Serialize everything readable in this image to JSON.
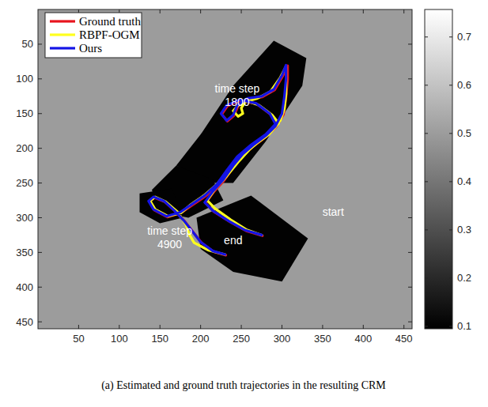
{
  "chart_data": {
    "type": "line",
    "caption": "(a) Estimated and ground truth trajectories in the resulting CRM",
    "xlim": [
      0,
      460
    ],
    "ylim": [
      460,
      0
    ],
    "xticks": [
      50,
      100,
      150,
      200,
      250,
      300,
      350,
      400,
      450
    ],
    "yticks": [
      50,
      100,
      150,
      200,
      250,
      300,
      350,
      400,
      450
    ],
    "legend": "upper left",
    "background_value": 0.5,
    "map_regions": [
      {
        "value": 0.1,
        "points": [
          [
            290,
            45
          ],
          [
            330,
            70
          ],
          [
            325,
            110
          ],
          [
            280,
            190
          ],
          [
            240,
            250
          ],
          [
            210,
            250
          ],
          [
            170,
            225
          ],
          [
            200,
            180
          ],
          [
            240,
            110
          ]
        ]
      },
      {
        "value": 0.1,
        "points": [
          [
            170,
            225
          ],
          [
            215,
            245
          ],
          [
            228,
            275
          ],
          [
            185,
            300
          ],
          [
            150,
            292
          ],
          [
            140,
            260
          ]
        ]
      },
      {
        "value": 0.1,
        "points": [
          [
            125,
            265
          ],
          [
            165,
            258
          ],
          [
            178,
            300
          ],
          [
            150,
            308
          ],
          [
            125,
            292
          ]
        ]
      },
      {
        "value": 0.1,
        "points": [
          [
            195,
            300
          ],
          [
            262,
            268
          ],
          [
            332,
            330
          ],
          [
            300,
            392
          ],
          [
            240,
            378
          ],
          [
            200,
            345
          ]
        ]
      }
    ],
    "colorbar": {
      "range": [
        0.095,
        0.757
      ],
      "ticks": [
        0.1,
        0.2,
        0.3,
        0.4,
        0.5,
        0.6,
        0.7
      ]
    },
    "series": [
      {
        "name": "Ground truth",
        "color": "#e8141e",
        "x": [
          276,
          256,
          236,
          216,
          206,
          216,
          229,
          241,
          253,
          266,
          281,
          293,
          302,
          305,
          307,
          307,
          301,
          291,
          276,
          259,
          246,
          241,
          233,
          226,
          233,
          249,
          269,
          286,
          293,
          281,
          263,
          246,
          233,
          221,
          206,
          191,
          176,
          159,
          143,
          137,
          143,
          156,
          169,
          181,
          191,
          201,
          216,
          231
        ],
        "values": [
          326,
          319,
          306,
          291,
          279,
          263,
          246,
          226,
          209,
          196,
          183,
          169,
          151,
          126,
          101,
          81,
          96,
          116,
          126,
          129,
          139,
          153,
          161,
          151,
          139,
          131,
          136,
          151,
          166,
          181,
          196,
          213,
          233,
          253,
          269,
          281,
          293,
          299,
          289,
          277,
          271,
          277,
          291,
          306,
          321,
          336,
          349,
          354
        ]
      },
      {
        "name": "RBPF-OGM",
        "color": "#ffff1e",
        "x": [
          275,
          256,
          237,
          218,
          208,
          218,
          232,
          246,
          260,
          274,
          288,
          298,
          303,
          305,
          305,
          305,
          298,
          286,
          270,
          255,
          250,
          252,
          246,
          240,
          246,
          258,
          272,
          288,
          296,
          284,
          265,
          247,
          233,
          220,
          204,
          188,
          176,
          160,
          144,
          138,
          144,
          157,
          172,
          182,
          186,
          192,
          210,
          230
        ],
        "values": [
          325,
          317,
          303,
          287,
          275,
          258,
          240,
          220,
          202,
          188,
          174,
          160,
          143,
          122,
          100,
          82,
          98,
          118,
          128,
          133,
          142,
          150,
          154,
          146,
          138,
          132,
          138,
          152,
          164,
          180,
          196,
          213,
          233,
          252,
          268,
          281,
          293,
          298,
          288,
          276,
          270,
          277,
          292,
          310,
          324,
          336,
          347,
          353
        ]
      },
      {
        "name": "Ours",
        "color": "#1414e6",
        "x": [
          275,
          255,
          235,
          215,
          205,
          215,
          228,
          240,
          252,
          265,
          280,
          292,
          300,
          303,
          305,
          305,
          300,
          290,
          275,
          258,
          245,
          240,
          232,
          225,
          232,
          248,
          268,
          285,
          292,
          280,
          262,
          245,
          232,
          220,
          205,
          190,
          175,
          158,
          142,
          136,
          142,
          155,
          168,
          180,
          190,
          200,
          215,
          230
        ],
        "values": [
          325,
          318,
          305,
          290,
          278,
          262,
          245,
          225,
          208,
          195,
          182,
          168,
          150,
          125,
          100,
          80,
          95,
          115,
          125,
          128,
          138,
          152,
          160,
          150,
          138,
          130,
          135,
          150,
          165,
          180,
          195,
          212,
          232,
          252,
          268,
          280,
          292,
          298,
          288,
          276,
          270,
          276,
          290,
          305,
          320,
          335,
          348,
          353
        ]
      }
    ],
    "annotations": [
      {
        "lines": [
          "time step",
          "1800"
        ],
        "x": 245,
        "y": 123
      },
      {
        "lines": [
          "time step",
          "4900"
        ],
        "x": 162,
        "y": 328
      },
      {
        "lines": [
          "start"
        ],
        "x": 363,
        "y": 292
      },
      {
        "lines": [
          "end"
        ],
        "x": 240,
        "y": 333
      }
    ]
  }
}
